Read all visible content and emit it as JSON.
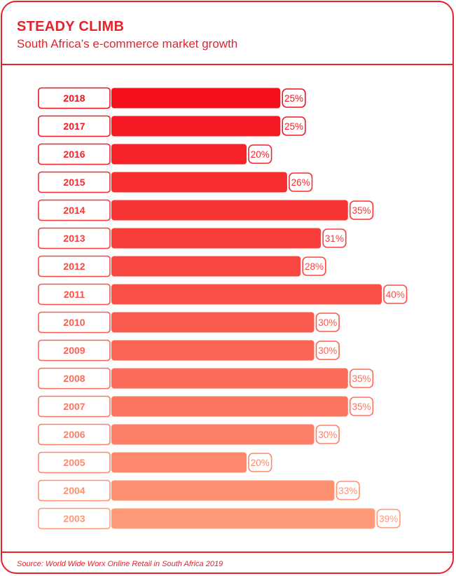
{
  "header": {
    "title": "STEADY CLIMB",
    "subtitle": "South Africa’s e-commerce market growth"
  },
  "footer": {
    "source": "Source: World Wide Worx Online Retail in South Africa 2019"
  },
  "colors": {
    "brand": "#e8202a",
    "bar_top": "#f5101d",
    "bar_bottom": "#ff9a78"
  },
  "chart_data": {
    "type": "bar",
    "orientation": "horizontal",
    "categories": [
      "2018",
      "2017",
      "2016",
      "2015",
      "2014",
      "2013",
      "2012",
      "2011",
      "2010",
      "2009",
      "2008",
      "2007",
      "2006",
      "2005",
      "2004",
      "2003"
    ],
    "values": [
      25,
      25,
      20,
      26,
      35,
      31,
      28,
      40,
      30,
      30,
      35,
      35,
      30,
      20,
      33,
      39
    ],
    "labels": [
      "25%",
      "25%",
      "20%",
      "26%",
      "35%",
      "31%",
      "28%",
      "40%",
      "30%",
      "30%",
      "35%",
      "35%",
      "30%",
      "20%",
      "33%",
      "39%"
    ],
    "xlim": [
      0,
      40
    ],
    "grid": false,
    "legend": "none"
  }
}
